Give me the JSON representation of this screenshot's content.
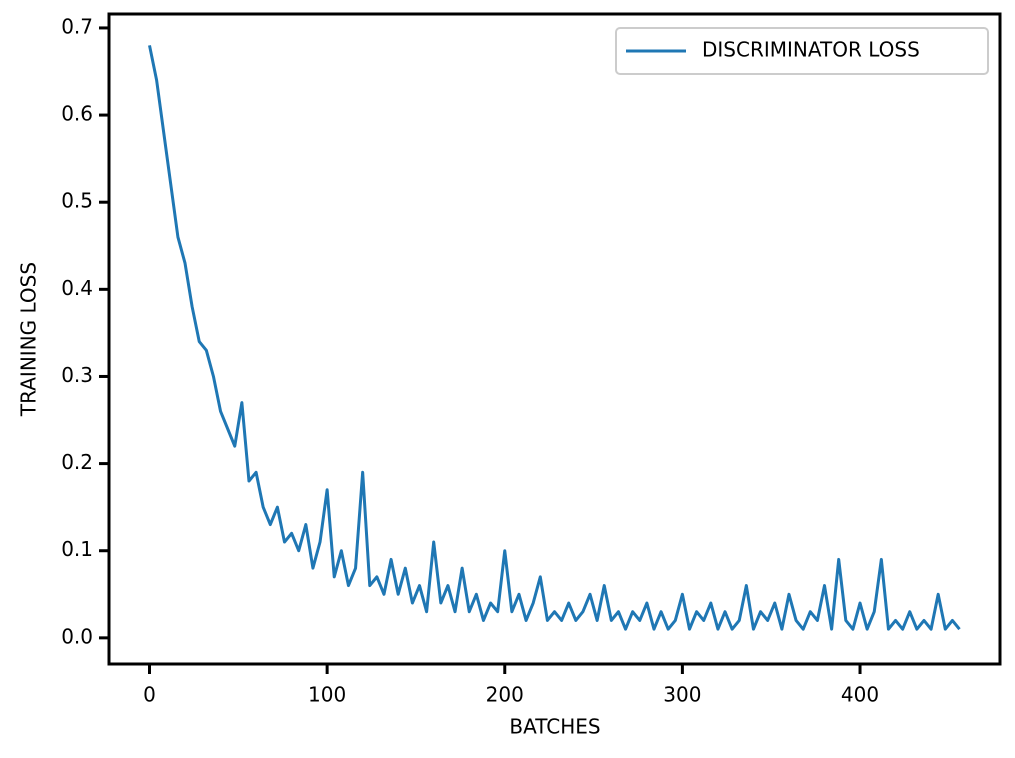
{
  "chart_data": {
    "type": "line",
    "x": [
      0,
      4,
      8,
      12,
      16,
      20,
      24,
      28,
      32,
      36,
      40,
      44,
      48,
      52,
      56,
      60,
      64,
      68,
      72,
      76,
      80,
      84,
      88,
      92,
      96,
      100,
      104,
      108,
      112,
      116,
      120,
      124,
      128,
      132,
      136,
      140,
      144,
      148,
      152,
      156,
      160,
      164,
      168,
      172,
      176,
      180,
      184,
      188,
      192,
      196,
      200,
      204,
      208,
      212,
      216,
      220,
      224,
      228,
      232,
      236,
      240,
      244,
      248,
      252,
      256,
      260,
      264,
      268,
      272,
      276,
      280,
      284,
      288,
      292,
      296,
      300,
      304,
      308,
      312,
      316,
      320,
      324,
      328,
      332,
      336,
      340,
      344,
      348,
      352,
      356,
      360,
      364,
      368,
      372,
      376,
      380,
      384,
      388,
      392,
      396,
      400,
      404,
      408,
      412,
      416,
      420,
      424,
      428,
      432,
      436,
      440,
      444,
      448,
      452,
      456
    ],
    "series": [
      {
        "name": "DISCRIMINATOR LOSS",
        "color": "#1f77b4",
        "values": [
          0.68,
          0.64,
          0.58,
          0.52,
          0.46,
          0.43,
          0.38,
          0.34,
          0.33,
          0.3,
          0.26,
          0.24,
          0.22,
          0.27,
          0.18,
          0.19,
          0.15,
          0.13,
          0.15,
          0.11,
          0.12,
          0.1,
          0.13,
          0.08,
          0.11,
          0.17,
          0.07,
          0.1,
          0.06,
          0.08,
          0.19,
          0.06,
          0.07,
          0.05,
          0.09,
          0.05,
          0.08,
          0.04,
          0.06,
          0.03,
          0.11,
          0.04,
          0.06,
          0.03,
          0.08,
          0.03,
          0.05,
          0.02,
          0.04,
          0.03,
          0.1,
          0.03,
          0.05,
          0.02,
          0.04,
          0.07,
          0.02,
          0.03,
          0.02,
          0.04,
          0.02,
          0.03,
          0.05,
          0.02,
          0.06,
          0.02,
          0.03,
          0.01,
          0.03,
          0.02,
          0.04,
          0.01,
          0.03,
          0.01,
          0.02,
          0.05,
          0.01,
          0.03,
          0.02,
          0.04,
          0.01,
          0.03,
          0.01,
          0.02,
          0.06,
          0.01,
          0.03,
          0.02,
          0.04,
          0.01,
          0.05,
          0.02,
          0.01,
          0.03,
          0.02,
          0.06,
          0.01,
          0.09,
          0.02,
          0.01,
          0.04,
          0.01,
          0.03,
          0.09,
          0.01,
          0.02,
          0.01,
          0.03,
          0.01,
          0.02,
          0.01,
          0.05,
          0.01,
          0.02,
          0.01
        ]
      }
    ],
    "xlabel": "BATCHES",
    "ylabel": "TRAINING LOSS",
    "xlim": [
      -22.8,
      478.8
    ],
    "ylim": [
      -0.03,
      0.716
    ],
    "xticks": [
      0,
      100,
      200,
      300,
      400
    ],
    "yticks": [
      {
        "value": 0,
        "label": "0.0"
      },
      0.1,
      0.2,
      0.3,
      0.4,
      0.5,
      0.6,
      0.7
    ],
    "legend": "upper right"
  }
}
